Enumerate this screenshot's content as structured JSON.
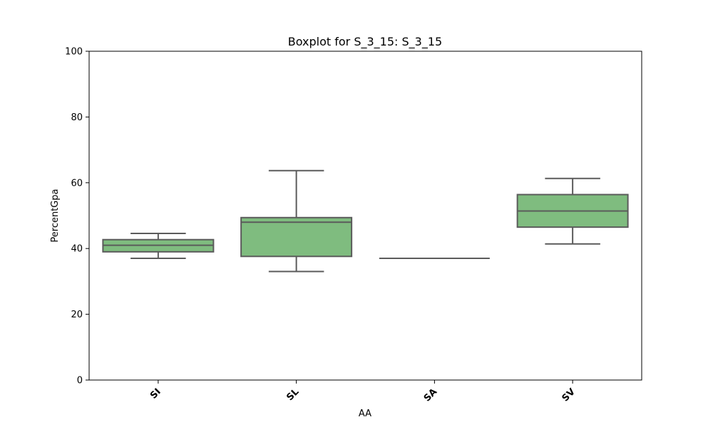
{
  "chart_data": {
    "type": "box",
    "title": "Boxplot for S_3_15: S_3_15",
    "xlabel": "AA",
    "ylabel": "PercentGpa",
    "ylim": [
      0,
      100
    ],
    "yticks": [
      0,
      20,
      40,
      60,
      80,
      100
    ],
    "grid": false,
    "box_color": "#7fbc7f",
    "line_color": "#5b5b5b",
    "categories": [
      "SI",
      "SL",
      "SA",
      "SV"
    ],
    "boxes": [
      {
        "category": "SI",
        "whisker_low": 37.0,
        "q1": 39.0,
        "median": 41.0,
        "q3": 42.7,
        "whisker_high": 44.6
      },
      {
        "category": "SL",
        "whisker_low": 33.0,
        "q1": 37.6,
        "median": 48.0,
        "q3": 49.4,
        "whisker_high": 63.7
      },
      {
        "category": "SA",
        "whisker_low": 37.0,
        "q1": 37.0,
        "median": 37.0,
        "q3": 37.0,
        "whisker_high": 37.0
      },
      {
        "category": "SV",
        "whisker_low": 41.4,
        "q1": 46.5,
        "median": 51.4,
        "q3": 56.4,
        "whisker_high": 61.3
      }
    ]
  }
}
